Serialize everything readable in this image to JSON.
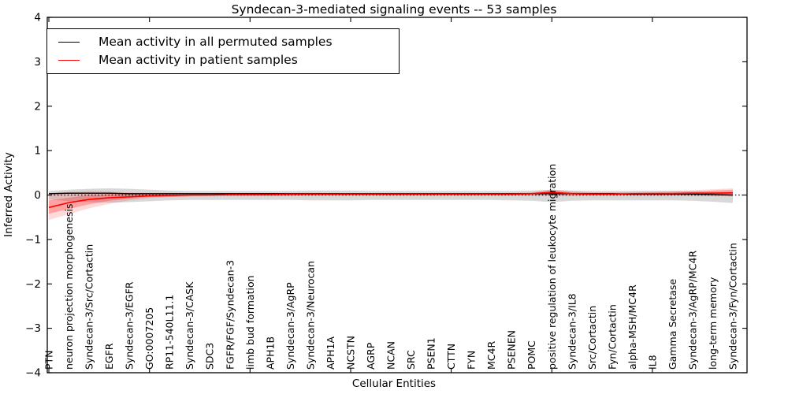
{
  "chart_data": {
    "type": "line",
    "title": "Syndecan-3-mediated signaling events -- 53 samples",
    "xlabel": "Cellular Entities",
    "ylabel": "Inferred Activity",
    "ylim": [
      -4,
      4
    ],
    "ytick_labels": [
      "4",
      "3",
      "2",
      "1",
      "0",
      "−1",
      "−2",
      "−3",
      "−4"
    ],
    "ytick_values": [
      4,
      3,
      2,
      1,
      0,
      -1,
      -2,
      -3,
      -4
    ],
    "xtick_indices": [
      0,
      5,
      10,
      15,
      20,
      25,
      30
    ],
    "grid": false,
    "legend_position": "upper-left",
    "zero_line_style": "dotted",
    "categories": [
      "PTN",
      "neuron projection morphogenesis",
      "Syndecan-3/Src/Cortactin",
      "EGFR",
      "Syndecan-3/EGFR",
      "GO:0007205",
      "RP11-540L11.1",
      "Syndecan-3/CASK",
      "SDC3",
      "FGFR/FGF/Syndecan-3",
      "limb bud formation",
      "APH1B",
      "Syndecan-3/AgRP",
      "Syndecan-3/Neurocan",
      "APH1A",
      "NCSTN",
      "AGRP",
      "NCAN",
      "SRC",
      "PSEN1",
      "CTTN",
      "FYN",
      "MC4R",
      "PSENEN",
      "POMC",
      "positive regulation of leukocyte migration",
      "Syndecan-3/IL8",
      "Src/Cortactin",
      "Fyn/Cortactin",
      "alpha-MSH/MC4R",
      "IL8",
      "Gamma Secretase",
      "Syndecan-3/AgRP/MC4R",
      "long-term memory",
      "Syndecan-3/Fyn/Cortactin"
    ],
    "series": [
      {
        "name": "Mean activity in all permuted samples",
        "color": "#000000",
        "values": [
          0.03,
          0.04,
          0.04,
          0.04,
          0.03,
          0.03,
          0.03,
          0.03,
          0.03,
          0.03,
          0.03,
          0.03,
          0.03,
          0.03,
          0.03,
          0.03,
          0.03,
          0.03,
          0.03,
          0.03,
          0.03,
          0.03,
          0.03,
          0.03,
          0.03,
          0.03,
          0.03,
          0.03,
          0.03,
          0.02,
          0.02,
          0.02,
          0.02,
          0.01,
          0.0
        ]
      },
      {
        "name": "Mean activity in patient samples",
        "color": "#ff0000",
        "values": [
          -0.28,
          -0.17,
          -0.1,
          -0.06,
          -0.04,
          -0.02,
          -0.01,
          0.0,
          0.0,
          0.01,
          0.01,
          0.01,
          0.02,
          0.02,
          0.02,
          0.02,
          0.02,
          0.02,
          0.02,
          0.02,
          0.02,
          0.02,
          0.02,
          0.02,
          0.03,
          0.06,
          0.03,
          0.02,
          0.02,
          0.03,
          0.03,
          0.03,
          0.04,
          0.04,
          0.05
        ]
      }
    ],
    "bands": [
      {
        "name": "permuted-samples-range",
        "color": "#999999",
        "opacity": 0.38,
        "low": [
          -0.1,
          -0.14,
          -0.16,
          -0.17,
          -0.16,
          -0.14,
          -0.12,
          -0.11,
          -0.11,
          -0.11,
          -0.11,
          -0.11,
          -0.11,
          -0.12,
          -0.12,
          -0.12,
          -0.11,
          -0.11,
          -0.11,
          -0.11,
          -0.11,
          -0.11,
          -0.11,
          -0.12,
          -0.13,
          -0.16,
          -0.13,
          -0.12,
          -0.12,
          -0.12,
          -0.12,
          -0.12,
          -0.13,
          -0.15,
          -0.18
        ],
        "high": [
          0.09,
          0.12,
          0.14,
          0.15,
          0.14,
          0.12,
          0.1,
          0.09,
          0.09,
          0.09,
          0.09,
          0.09,
          0.09,
          0.1,
          0.1,
          0.1,
          0.09,
          0.09,
          0.09,
          0.09,
          0.09,
          0.09,
          0.09,
          0.09,
          0.1,
          0.12,
          0.1,
          0.09,
          0.09,
          0.09,
          0.09,
          0.09,
          0.08,
          0.07,
          0.05
        ]
      },
      {
        "name": "patient-samples-outer-band",
        "color": "#ff3333",
        "opacity": 0.18,
        "low": [
          -0.56,
          -0.43,
          -0.3,
          -0.2,
          -0.12,
          -0.07,
          -0.05,
          -0.03,
          -0.02,
          -0.02,
          -0.02,
          -0.02,
          -0.02,
          -0.01,
          -0.01,
          -0.01,
          -0.01,
          -0.01,
          -0.01,
          -0.01,
          -0.01,
          -0.01,
          -0.01,
          -0.01,
          -0.01,
          -0.02,
          -0.02,
          -0.01,
          -0.01,
          -0.01,
          -0.01,
          -0.01,
          -0.02,
          -0.02,
          -0.03
        ],
        "high": [
          0.04,
          0.07,
          0.09,
          0.08,
          0.06,
          0.05,
          0.05,
          0.04,
          0.04,
          0.04,
          0.04,
          0.04,
          0.05,
          0.05,
          0.05,
          0.04,
          0.04,
          0.04,
          0.04,
          0.04,
          0.04,
          0.04,
          0.04,
          0.05,
          0.06,
          0.13,
          0.08,
          0.06,
          0.06,
          0.07,
          0.08,
          0.09,
          0.11,
          0.13,
          0.15
        ]
      },
      {
        "name": "patient-samples-inner-band",
        "color": "#ff2222",
        "opacity": 0.3,
        "low": [
          -0.42,
          -0.31,
          -0.21,
          -0.13,
          -0.08,
          -0.05,
          -0.03,
          -0.02,
          -0.01,
          -0.01,
          -0.01,
          -0.01,
          -0.01,
          0.0,
          0.0,
          0.0,
          0.0,
          0.0,
          0.0,
          0.0,
          0.0,
          0.0,
          0.0,
          0.0,
          0.0,
          0.01,
          0.0,
          0.0,
          0.0,
          0.0,
          0.0,
          0.0,
          0.01,
          0.01,
          0.01
        ],
        "high": [
          -0.12,
          -0.06,
          0.0,
          0.02,
          0.03,
          0.03,
          0.03,
          0.03,
          0.03,
          0.03,
          0.03,
          0.03,
          0.04,
          0.04,
          0.04,
          0.03,
          0.03,
          0.03,
          0.03,
          0.03,
          0.03,
          0.03,
          0.03,
          0.04,
          0.05,
          0.1,
          0.06,
          0.05,
          0.05,
          0.05,
          0.06,
          0.07,
          0.08,
          0.1,
          0.12
        ]
      }
    ]
  }
}
